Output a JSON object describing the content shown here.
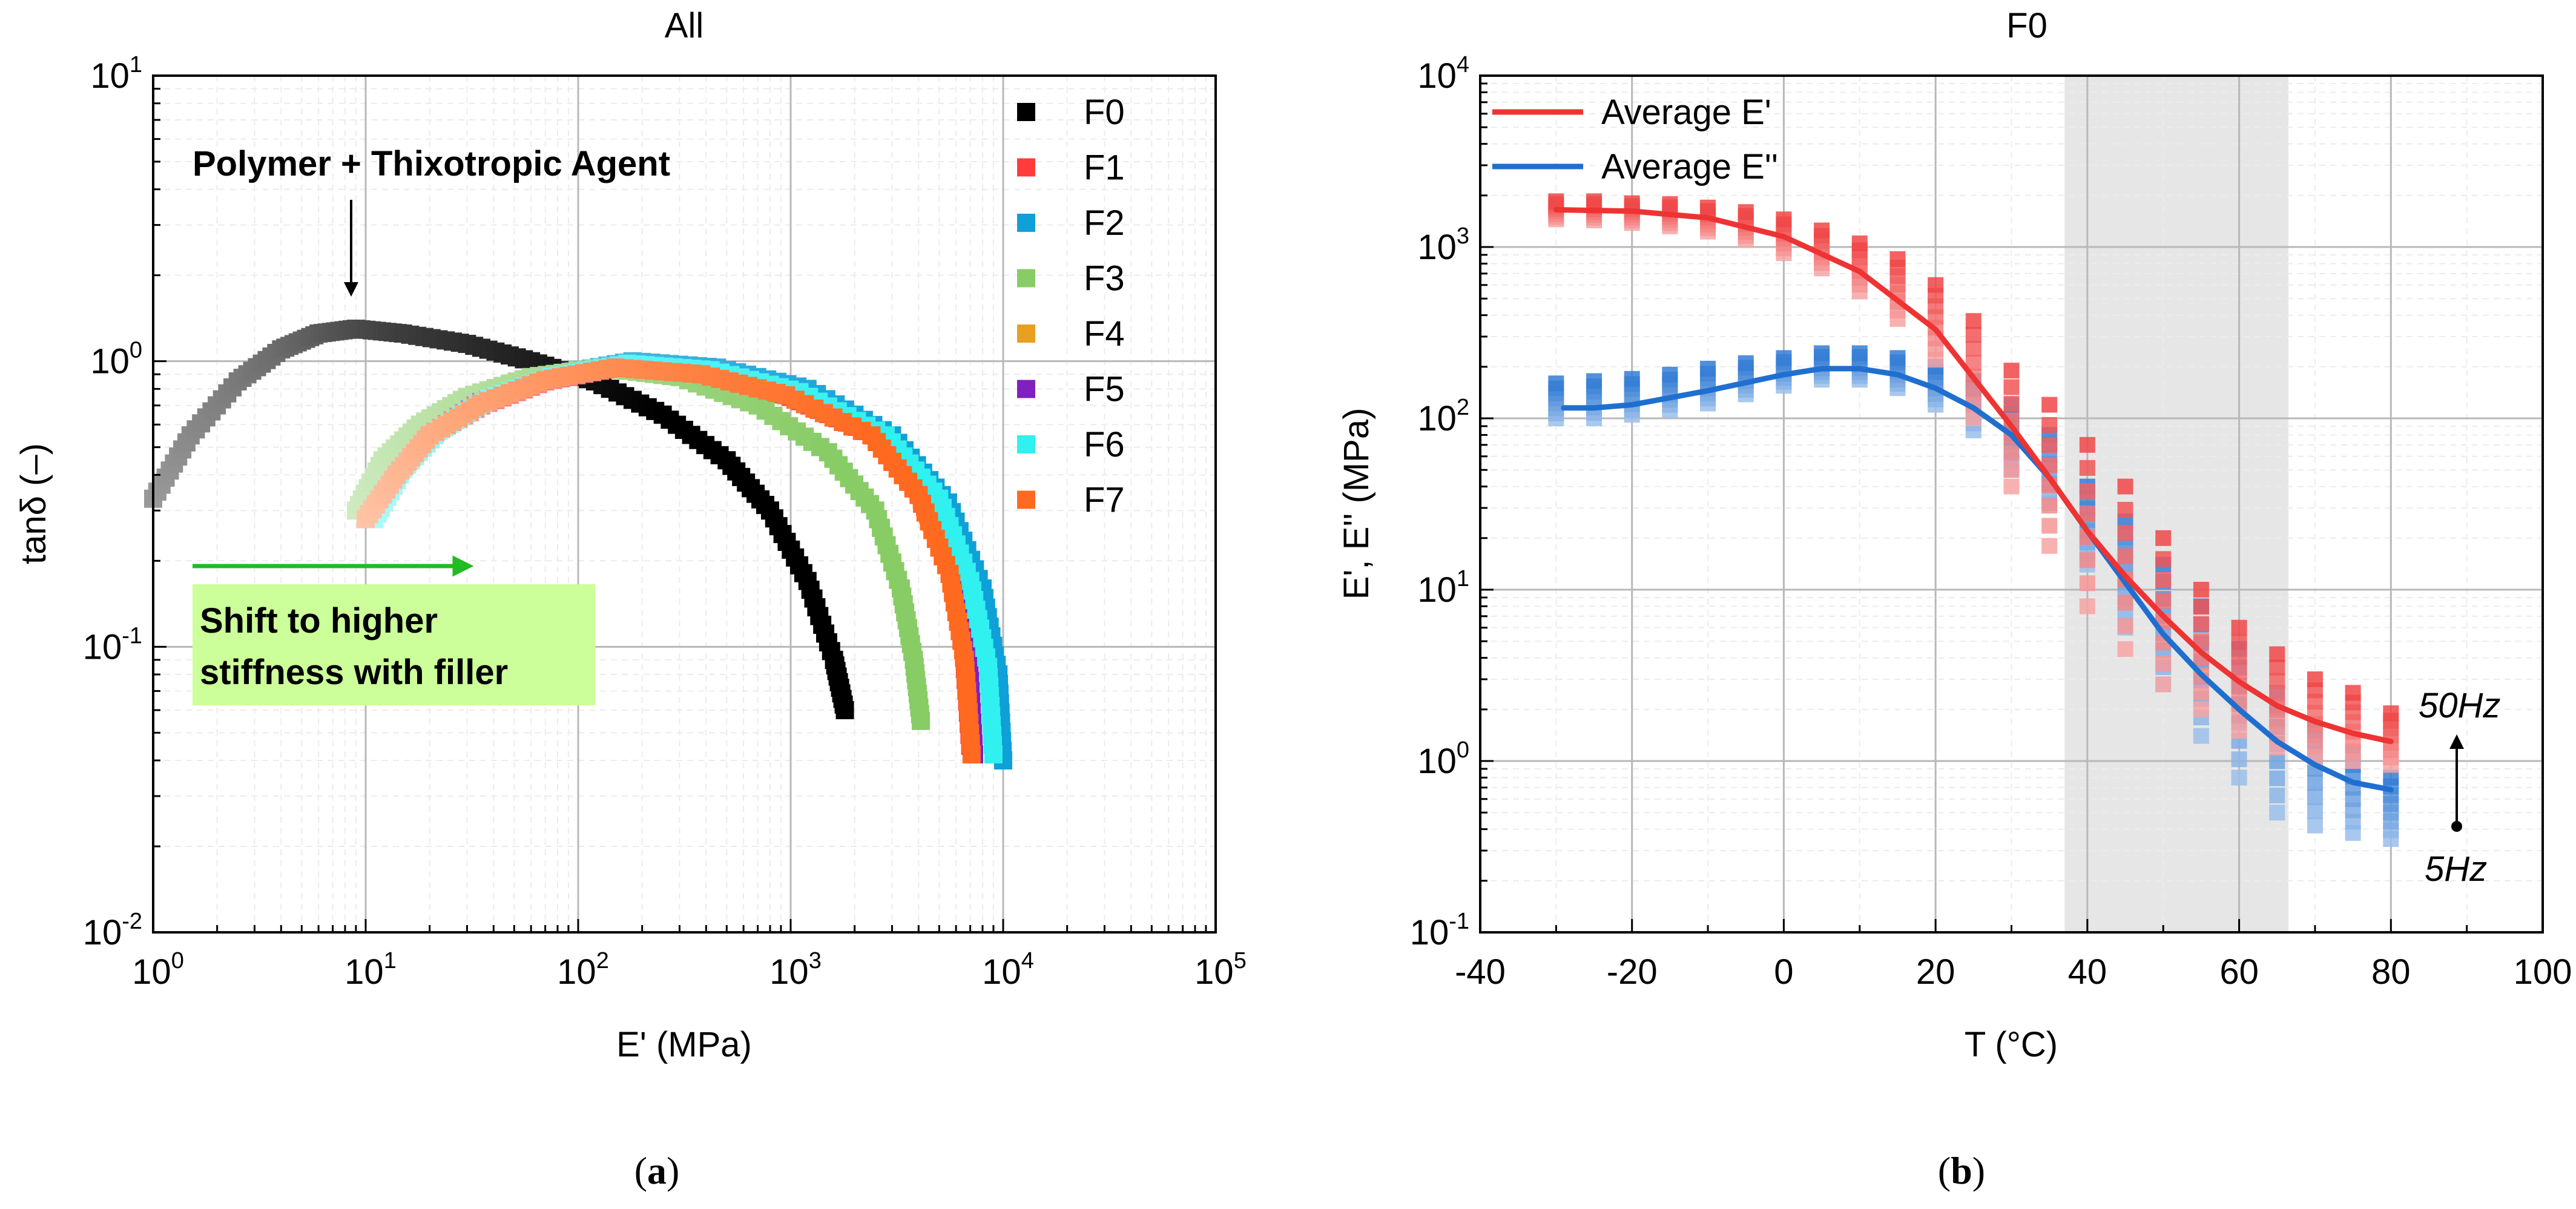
{
  "chart_data": [
    {
      "id": "a",
      "type": "scatter",
      "title": "All",
      "xlabel": "E' (MPa)",
      "ylabel": "tanδ (–)",
      "xscale": "log",
      "yscale": "log",
      "xlim": [
        1,
        100000
      ],
      "ylim": [
        0.01,
        10
      ],
      "xticks": [
        {
          "base": "10",
          "exp": "0"
        },
        {
          "base": "10",
          "exp": "1"
        },
        {
          "base": "10",
          "exp": "2"
        },
        {
          "base": "10",
          "exp": "3"
        },
        {
          "base": "10",
          "exp": "4"
        },
        {
          "base": "10",
          "exp": "5"
        }
      ],
      "yticks": [
        {
          "base": "10",
          "exp": "-2"
        },
        {
          "base": "10",
          "exp": "-1"
        },
        {
          "base": "10",
          "exp": "0"
        },
        {
          "base": "10",
          "exp": "1"
        }
      ],
      "grid": true,
      "legend_position": "top-right",
      "series": [
        {
          "name": "F0",
          "color": "#000000",
          "x": [
            1.0,
            1.5,
            2.5,
            4,
            6,
            9,
            15,
            30,
            60,
            120,
            250,
            500,
            800,
            1200,
            1600,
            1800
          ],
          "y": [
            0.33,
            0.55,
            0.85,
            1.1,
            1.25,
            1.3,
            1.25,
            1.15,
            1.0,
            0.85,
            0.65,
            0.45,
            0.3,
            0.17,
            0.09,
            0.06
          ]
        },
        {
          "name": "F1",
          "color": "#ff3b3b",
          "x": [
            10,
            14,
            20,
            35,
            70,
            150,
            400,
            1000,
            2500,
            4000,
            5500,
            6500,
            7000
          ],
          "y": [
            0.28,
            0.4,
            0.55,
            0.7,
            0.85,
            0.95,
            0.9,
            0.75,
            0.55,
            0.35,
            0.2,
            0.1,
            0.045
          ]
        },
        {
          "name": "F2",
          "color": "#0fa0d8",
          "x": [
            11,
            15,
            22,
            40,
            80,
            180,
            450,
            1200,
            3000,
            5500,
            8000,
            9500,
            10000
          ],
          "y": [
            0.28,
            0.42,
            0.58,
            0.75,
            0.9,
            1.0,
            0.95,
            0.8,
            0.55,
            0.32,
            0.16,
            0.08,
            0.04
          ]
        },
        {
          "name": "F3",
          "color": "#88cc66",
          "x": [
            9,
            12,
            18,
            30,
            60,
            130,
            300,
            700,
            1500,
            2500,
            3300,
            3800,
            4100
          ],
          "y": [
            0.3,
            0.45,
            0.6,
            0.75,
            0.88,
            0.95,
            0.88,
            0.7,
            0.48,
            0.3,
            0.16,
            0.09,
            0.055
          ]
        },
        {
          "name": "F4",
          "color": "#e8a020",
          "x": [
            10,
            14,
            20,
            35,
            70,
            160,
            400,
            1000,
            2500,
            4200,
            5800,
            6800,
            7200
          ],
          "y": [
            0.28,
            0.4,
            0.55,
            0.72,
            0.86,
            0.96,
            0.9,
            0.76,
            0.55,
            0.34,
            0.18,
            0.09,
            0.042
          ]
        },
        {
          "name": "F5",
          "color": "#8020c0",
          "x": [
            10,
            14,
            20,
            35,
            70,
            160,
            400,
            1000,
            2500,
            4200,
            5900,
            6900,
            7300
          ],
          "y": [
            0.28,
            0.4,
            0.55,
            0.72,
            0.86,
            0.96,
            0.9,
            0.76,
            0.55,
            0.34,
            0.18,
            0.09,
            0.042
          ]
        },
        {
          "name": "F6",
          "color": "#30f0f0",
          "x": [
            11,
            15,
            22,
            38,
            75,
            170,
            420,
            1100,
            2800,
            5000,
            7000,
            8500,
            9000
          ],
          "y": [
            0.28,
            0.42,
            0.57,
            0.74,
            0.88,
            0.98,
            0.93,
            0.78,
            0.55,
            0.33,
            0.17,
            0.085,
            0.042
          ]
        },
        {
          "name": "F7",
          "color": "#ff6a20",
          "x": [
            10,
            14,
            20,
            35,
            70,
            150,
            380,
            950,
            2400,
            4000,
            5600,
            6600,
            7100
          ],
          "y": [
            0.28,
            0.4,
            0.55,
            0.71,
            0.86,
            0.95,
            0.9,
            0.76,
            0.55,
            0.34,
            0.18,
            0.09,
            0.042
          ]
        }
      ],
      "annotations": {
        "polymer_label": "Polymer + Thixotropic Agent",
        "shift_line1": "Shift to higher",
        "shift_line2": "stiffness with filler",
        "shift_box_color": "#ccff99",
        "arrow_color": "#22bb22"
      }
    },
    {
      "id": "b",
      "type": "scatter",
      "title": "F0",
      "xlabel": "T (°C)",
      "ylabel": "E', E'' (MPa)",
      "xscale": "linear",
      "yscale": "log",
      "xlim": [
        -40,
        100
      ],
      "ylim": [
        0.1,
        10000
      ],
      "xticks": [
        "-40",
        "-20",
        "0",
        "20",
        "40",
        "60",
        "80",
        "100"
      ],
      "yticks": [
        {
          "base": "10",
          "exp": "-1"
        },
        {
          "base": "10",
          "exp": "0"
        },
        {
          "base": "10",
          "exp": "1"
        },
        {
          "base": "10",
          "exp": "2"
        },
        {
          "base": "10",
          "exp": "3"
        },
        {
          "base": "10",
          "exp": "4"
        }
      ],
      "grid": true,
      "legend_position": "top-left",
      "shaded_region": {
        "x": [
          37,
          66.5
        ],
        "color": "#e6e6e6"
      },
      "temperatures": [
        -30,
        -25,
        -20,
        -15,
        -10,
        -5,
        0,
        5,
        10,
        15,
        20,
        25,
        30,
        35,
        40,
        45,
        50,
        55,
        60,
        65,
        70,
        75,
        80
      ],
      "storage_modulus": {
        "name": "Average E'",
        "color": "#ee3333",
        "avg": [
          1650,
          1640,
          1600,
          1550,
          1450,
          1330,
          1170,
          980,
          780,
          560,
          330,
          170,
          75,
          30,
          14,
          7,
          4.2,
          2.8,
          2.0,
          1.6,
          1.4,
          1.3,
          1.25
        ],
        "low": [
          1450,
          1430,
          1380,
          1320,
          1230,
          1100,
          920,
          750,
          550,
          380,
          220,
          100,
          40,
          18,
          8,
          4.5,
          2.8,
          2.0,
          1.5,
          1.2,
          1.05,
          1.0,
          0.95
        ],
        "high": [
          1850,
          1850,
          1800,
          1780,
          1700,
          1600,
          1450,
          1250,
          1050,
          850,
          600,
          370,
          190,
          120,
          70,
          40,
          20,
          10,
          6,
          4.2,
          3.0,
          2.5,
          1.9
        ]
      },
      "loss_modulus": {
        "name": "Average E''",
        "color": "#1f6fd0",
        "avg": [
          115,
          117,
          122,
          132,
          145,
          165,
          185,
          200,
          200,
          185,
          155,
          115,
          75,
          40,
          18,
          8,
          3.8,
          2.0,
          1.1,
          0.7,
          0.55,
          0.5,
          0.5
        ],
        "low": [
          100,
          100,
          105,
          112,
          122,
          138,
          155,
          168,
          168,
          150,
          120,
          85,
          50,
          32,
          14,
          6,
          2.8,
          1.4,
          0.8,
          0.5,
          0.42,
          0.38,
          0.35
        ],
        "high": [
          160,
          165,
          170,
          180,
          195,
          210,
          225,
          240,
          240,
          225,
          200,
          165,
          120,
          80,
          40,
          25,
          14,
          8,
          4.5,
          2.5,
          1.6,
          1.1,
          0.8
        ]
      },
      "e_prime_curve": [
        [
          -30,
          1650
        ],
        [
          -20,
          1620
        ],
        [
          -10,
          1480
        ],
        [
          0,
          1150
        ],
        [
          10,
          720
        ],
        [
          20,
          330
        ],
        [
          30,
          90
        ],
        [
          35,
          45
        ],
        [
          40,
          22
        ],
        [
          45,
          12
        ],
        [
          50,
          7
        ],
        [
          55,
          4.3
        ],
        [
          60,
          2.9
        ],
        [
          65,
          2.1
        ],
        [
          70,
          1.7
        ],
        [
          75,
          1.45
        ],
        [
          80,
          1.3
        ]
      ],
      "e_double_prime_curve": [
        [
          -29,
          115
        ],
        [
          -25,
          115
        ],
        [
          -20,
          120
        ],
        [
          -10,
          145
        ],
        [
          0,
          180
        ],
        [
          5,
          195
        ],
        [
          10,
          195
        ],
        [
          15,
          180
        ],
        [
          20,
          150
        ],
        [
          25,
          115
        ],
        [
          30,
          80
        ],
        [
          35,
          45
        ],
        [
          40,
          22
        ],
        [
          45,
          11
        ],
        [
          50,
          5.5
        ],
        [
          55,
          3.2
        ],
        [
          60,
          2.0
        ],
        [
          65,
          1.3
        ],
        [
          70,
          0.95
        ],
        [
          75,
          0.75
        ],
        [
          80,
          0.68
        ]
      ],
      "frequency_high_label": "50Hz",
      "frequency_low_label": "5Hz"
    }
  ],
  "captions": {
    "a": "a",
    "b": "b"
  }
}
